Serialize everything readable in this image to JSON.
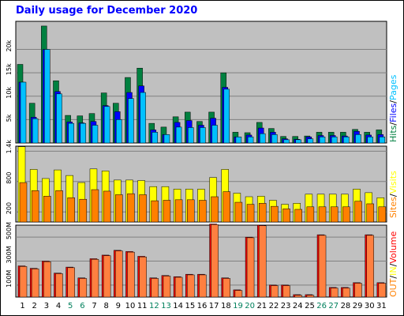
{
  "title": "Daily usage for December 2020",
  "colors": {
    "background": "#c0c0c0",
    "hits": "#008040",
    "files": "#0000ff",
    "pages": "#00c0ff",
    "visits": "#ffff00",
    "sites": "#ff8000",
    "kbytes": "#ff0000",
    "weekday_label": "#000000",
    "weekend_label": "#00805c"
  },
  "legends": {
    "top": [
      {
        "text": "Hits",
        "color": "#008040"
      },
      {
        "text": "/",
        "color": "#000000"
      },
      {
        "text": "Files",
        "color": "#0000ff"
      },
      {
        "text": "/",
        "color": "#000000"
      },
      {
        "text": "Pages",
        "color": "#00c0ff"
      }
    ],
    "middle": [
      {
        "text": "Sites",
        "color": "#ff8000"
      },
      {
        "text": "/",
        "color": "#000000"
      },
      {
        "text": "Visits",
        "color": "#ffff00"
      }
    ],
    "bottom": [
      {
        "text": "OUT",
        "color": "#ff8000"
      },
      {
        "text": "/",
        "color": "#000000"
      },
      {
        "text": "IN",
        "color": "#ffff00"
      },
      {
        "text": "/",
        "color": "#000000"
      },
      {
        "text": "Volume",
        "color": "#ff0000"
      }
    ]
  },
  "chart_data": [
    {
      "type": "bar",
      "panel": "hits-files-pages",
      "categories": [
        "1",
        "2",
        "3",
        "4",
        "5",
        "6",
        "7",
        "8",
        "9",
        "10",
        "11",
        "12",
        "13",
        "14",
        "15",
        "16",
        "17",
        "18",
        "19",
        "20",
        "21",
        "22",
        "23",
        "24",
        "25",
        "26",
        "27",
        "28",
        "29",
        "30",
        "31"
      ],
      "weekend_days": [
        "5",
        "6",
        "12",
        "13",
        "19",
        "20",
        "26",
        "27"
      ],
      "yticks": [
        "5k",
        "10k",
        "15k",
        "20k"
      ],
      "ylim": [
        0,
        26000
      ],
      "series": [
        {
          "name": "Hits",
          "values": [
            16800,
            8500,
            25000,
            13300,
            5900,
            5800,
            6300,
            10700,
            8500,
            14000,
            16000,
            4200,
            3400,
            5600,
            6600,
            4600,
            6600,
            15000,
            2300,
            2200,
            4400,
            3100,
            1400,
            1400,
            1500,
            2300,
            2300,
            2300,
            2900,
            2300,
            2800
          ]
        },
        {
          "name": "Files",
          "values": [
            13000,
            5500,
            20000,
            11000,
            4500,
            4300,
            4600,
            8000,
            6700,
            10800,
            12200,
            2800,
            1800,
            4400,
            4800,
            3800,
            5300,
            11900,
            1300,
            1700,
            3200,
            2300,
            900,
            800,
            1300,
            1600,
            1600,
            1500,
            2500,
            1700,
            1800
          ]
        },
        {
          "name": "Pages",
          "values": [
            13000,
            5200,
            20000,
            10500,
            4200,
            4200,
            3800,
            7800,
            5000,
            9500,
            10800,
            2300,
            1800,
            3400,
            3300,
            3300,
            3800,
            11500,
            1300,
            1300,
            2000,
            1800,
            700,
            700,
            900,
            1300,
            1300,
            1300,
            1800,
            1300,
            1300
          ]
        }
      ]
    },
    {
      "type": "bar",
      "panel": "visits-sites",
      "categories": [
        "1",
        "2",
        "3",
        "4",
        "5",
        "6",
        "7",
        "8",
        "9",
        "10",
        "11",
        "12",
        "13",
        "14",
        "15",
        "16",
        "17",
        "18",
        "19",
        "20",
        "21",
        "22",
        "23",
        "24",
        "25",
        "26",
        "27",
        "28",
        "29",
        "30",
        "31"
      ],
      "yticks": [
        "200",
        "800",
        "1.4k"
      ],
      "ylim": [
        0,
        1500
      ],
      "series": [
        {
          "name": "Visits",
          "values": [
            1490,
            1040,
            860,
            1030,
            920,
            780,
            1050,
            1010,
            830,
            830,
            820,
            700,
            700,
            650,
            650,
            650,
            880,
            1040,
            570,
            500,
            510,
            430,
            350,
            370,
            550,
            550,
            550,
            550,
            650,
            580,
            480
          ]
        },
        {
          "name": "Sites",
          "values": [
            780,
            620,
            510,
            620,
            480,
            450,
            640,
            610,
            540,
            560,
            540,
            420,
            430,
            440,
            440,
            430,
            500,
            600,
            390,
            350,
            370,
            310,
            260,
            250,
            300,
            300,
            300,
            300,
            410,
            360,
            300
          ]
        }
      ]
    },
    {
      "type": "bar",
      "panel": "volume-in-out",
      "categories": [
        "1",
        "2",
        "3",
        "4",
        "5",
        "6",
        "7",
        "8",
        "9",
        "10",
        "11",
        "12",
        "13",
        "14",
        "15",
        "16",
        "17",
        "18",
        "19",
        "20",
        "21",
        "22",
        "23",
        "24",
        "25",
        "26",
        "27",
        "28",
        "29",
        "30",
        "31"
      ],
      "yticks": [
        "100M",
        "300M",
        "500M"
      ],
      "ylim": [
        0,
        600
      ],
      "series": [
        {
          "name": "Volume",
          "values": [
            260,
            240,
            300,
            200,
            250,
            160,
            320,
            350,
            390,
            380,
            340,
            160,
            180,
            170,
            190,
            190,
            610,
            160,
            60,
            500,
            600,
            100,
            100,
            20,
            20,
            520,
            80,
            80,
            120,
            520,
            120
          ]
        },
        {
          "name": "OUT",
          "values": [
            255,
            235,
            295,
            195,
            245,
            155,
            315,
            345,
            385,
            375,
            335,
            155,
            175,
            165,
            185,
            185,
            605,
            155,
            55,
            495,
            595,
            95,
            95,
            15,
            15,
            515,
            75,
            75,
            115,
            515,
            115
          ]
        }
      ]
    }
  ]
}
